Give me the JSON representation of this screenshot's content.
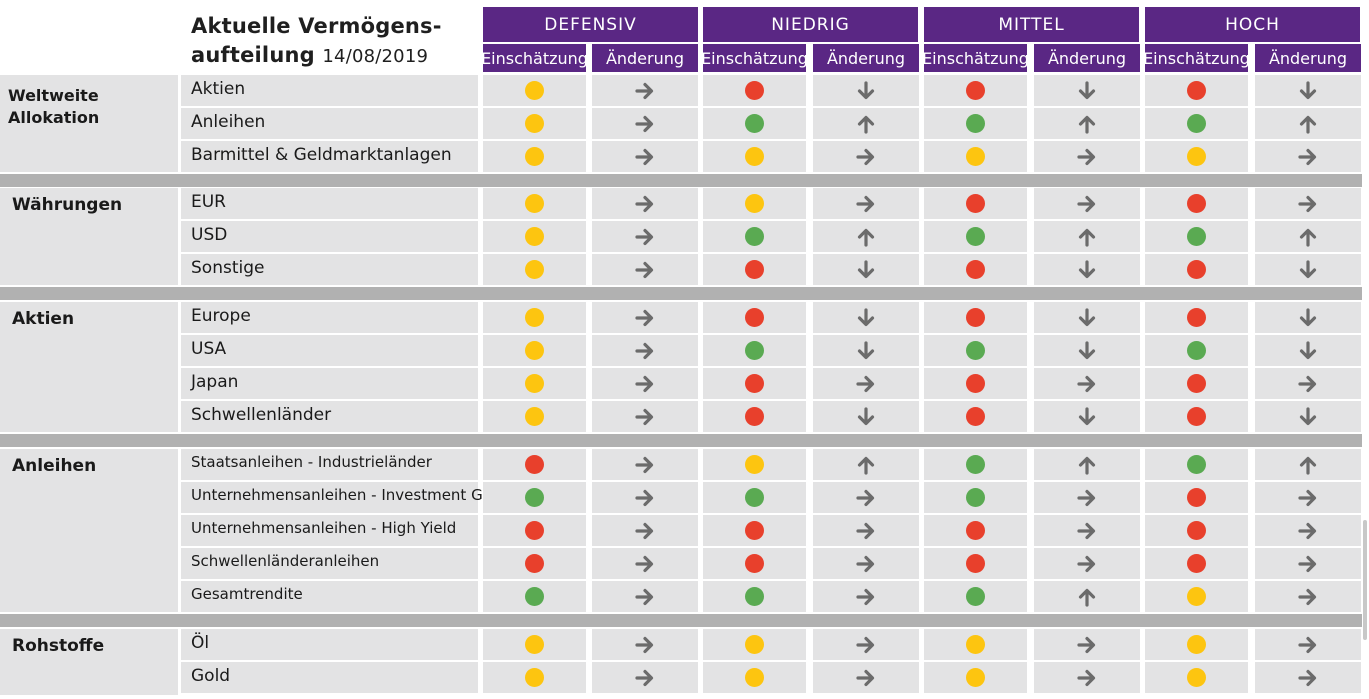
{
  "title": {
    "line1": "Aktuelle Vermögens-",
    "line2": "aufteilung",
    "date": "14/08/2019"
  },
  "profiles": [
    "DEFENSIV",
    "NIEDRIG",
    "MITTEL",
    "HOCH"
  ],
  "subheaders": {
    "assessment": "Einschätzung",
    "change": "Änderung"
  },
  "colors": {
    "header": "#5a2784",
    "red": "#e8402c",
    "yellow": "#fdc510",
    "green": "#5aaa52",
    "arrow": "#6b6b6b",
    "row": "#e3e3e4",
    "separator": "#b1b1b1"
  },
  "groups": [
    {
      "name": "Weltweite Allokation",
      "rows": [
        {
          "label": "Aktien",
          "cells": [
            [
              "yellow",
              "right"
            ],
            [
              "red",
              "down"
            ],
            [
              "red",
              "down"
            ],
            [
              "red",
              "down"
            ]
          ]
        },
        {
          "label": "Anleihen",
          "cells": [
            [
              "yellow",
              "right"
            ],
            [
              "green",
              "up"
            ],
            [
              "green",
              "up"
            ],
            [
              "green",
              "up"
            ]
          ]
        },
        {
          "label": "Barmittel & Geldmarktanlagen",
          "cells": [
            [
              "yellow",
              "right"
            ],
            [
              "yellow",
              "right"
            ],
            [
              "yellow",
              "right"
            ],
            [
              "yellow",
              "right"
            ]
          ]
        }
      ]
    },
    {
      "name": "Währungen",
      "rows": [
        {
          "label": "EUR",
          "cells": [
            [
              "yellow",
              "right"
            ],
            [
              "yellow",
              "right"
            ],
            [
              "red",
              "right"
            ],
            [
              "red",
              "right"
            ]
          ]
        },
        {
          "label": "USD",
          "cells": [
            [
              "yellow",
              "right"
            ],
            [
              "green",
              "up"
            ],
            [
              "green",
              "up"
            ],
            [
              "green",
              "up"
            ]
          ]
        },
        {
          "label": "Sonstige",
          "cells": [
            [
              "yellow",
              "right"
            ],
            [
              "red",
              "down"
            ],
            [
              "red",
              "down"
            ],
            [
              "red",
              "down"
            ]
          ]
        }
      ]
    },
    {
      "name": "Aktien",
      "rows": [
        {
          "label": "Europe",
          "cells": [
            [
              "yellow",
              "right"
            ],
            [
              "red",
              "down"
            ],
            [
              "red",
              "down"
            ],
            [
              "red",
              "down"
            ]
          ]
        },
        {
          "label": "USA",
          "cells": [
            [
              "yellow",
              "right"
            ],
            [
              "green",
              "down"
            ],
            [
              "green",
              "down"
            ],
            [
              "green",
              "down"
            ]
          ]
        },
        {
          "label": "Japan",
          "cells": [
            [
              "yellow",
              "right"
            ],
            [
              "red",
              "right"
            ],
            [
              "red",
              "right"
            ],
            [
              "red",
              "right"
            ]
          ]
        },
        {
          "label": "Schwellenländer",
          "cells": [
            [
              "yellow",
              "right"
            ],
            [
              "red",
              "down"
            ],
            [
              "red",
              "down"
            ],
            [
              "red",
              "down"
            ]
          ]
        }
      ]
    },
    {
      "name": "Anleihen",
      "rows": [
        {
          "label": "Staatsanleihen - Industrieländer",
          "cells": [
            [
              "red",
              "right"
            ],
            [
              "yellow",
              "up"
            ],
            [
              "green",
              "up"
            ],
            [
              "green",
              "up"
            ]
          ]
        },
        {
          "label": "Unternehmensanleihen - Investment Grade",
          "cells": [
            [
              "green",
              "right"
            ],
            [
              "green",
              "right"
            ],
            [
              "green",
              "right"
            ],
            [
              "red",
              "right"
            ]
          ]
        },
        {
          "label": "Unternehmensanleihen - High Yield",
          "cells": [
            [
              "red",
              "right"
            ],
            [
              "red",
              "right"
            ],
            [
              "red",
              "right"
            ],
            [
              "red",
              "right"
            ]
          ]
        },
        {
          "label": "Schwellenländeranleihen",
          "cells": [
            [
              "red",
              "right"
            ],
            [
              "red",
              "right"
            ],
            [
              "red",
              "right"
            ],
            [
              "red",
              "right"
            ]
          ]
        },
        {
          "label": "Gesamtrendite",
          "cells": [
            [
              "green",
              "right"
            ],
            [
              "green",
              "right"
            ],
            [
              "green",
              "up"
            ],
            [
              "yellow",
              "right"
            ]
          ]
        }
      ]
    },
    {
      "name": "Rohstoffe",
      "rows": [
        {
          "label": "Öl",
          "cells": [
            [
              "yellow",
              "right"
            ],
            [
              "yellow",
              "right"
            ],
            [
              "yellow",
              "right"
            ],
            [
              "yellow",
              "right"
            ]
          ]
        },
        {
          "label": "Gold",
          "cells": [
            [
              "yellow",
              "right"
            ],
            [
              "yellow",
              "right"
            ],
            [
              "yellow",
              "right"
            ],
            [
              "yellow",
              "right"
            ]
          ]
        }
      ]
    }
  ]
}
